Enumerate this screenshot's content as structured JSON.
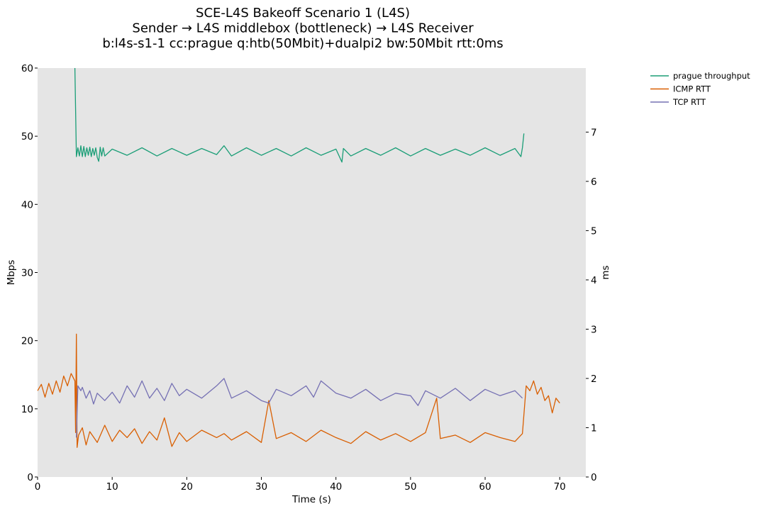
{
  "chart_data": {
    "type": "line",
    "title": [
      "SCE-L4S Bakeoff Scenario 1 (L4S)",
      "Sender → L4S middlebox (bottleneck) → L4S Receiver",
      "b:l4s-s1-1 cc:prague q:htb(50Mbit)+dualpi2 bw:50Mbit rtt:0ms"
    ],
    "xlabel": "Time (s)",
    "ylabel": "Mbps",
    "y2label": "ms",
    "xlim": [
      0,
      73.5
    ],
    "ylim": [
      0,
      60
    ],
    "y2lim": [
      0,
      8.3
    ],
    "xticks": [
      0,
      10,
      20,
      30,
      40,
      50,
      60,
      70
    ],
    "yticks": [
      0,
      10,
      20,
      30,
      40,
      50,
      60
    ],
    "y2ticks": [
      0,
      1,
      2,
      3,
      4,
      5,
      6,
      7
    ],
    "background": "#e5e5e5",
    "grid": false,
    "legend_position": "outside-top-right",
    "series": [
      {
        "name": "prague throughput",
        "axis": "left",
        "color": "#1b9e77",
        "x": [
          5.0,
          5.2,
          5.4,
          5.6,
          5.8,
          6.0,
          6.2,
          6.4,
          6.6,
          6.8,
          7.0,
          7.2,
          7.4,
          7.6,
          7.8,
          8.0,
          8.2,
          8.4,
          8.6,
          8.8,
          9.0,
          10.0,
          12.0,
          14.0,
          16.0,
          18.0,
          20.0,
          22.0,
          24.0,
          25.0,
          26.0,
          28.0,
          30.0,
          32.0,
          34.0,
          36.0,
          38.0,
          40.0,
          40.8,
          41.0,
          42.0,
          44.0,
          46.0,
          48.0,
          50.0,
          52.0,
          54.0,
          56.0,
          58.0,
          60.0,
          62.0,
          64.0,
          64.8,
          65.0,
          65.2
        ],
        "values": [
          60,
          47.0,
          48.3,
          47.1,
          48.6,
          47.0,
          48.5,
          47.0,
          48.3,
          47.2,
          48.4,
          47.0,
          48.2,
          47.2,
          48.3,
          46.9,
          46.3,
          48.4,
          47.1,
          48.3,
          47.1,
          48.1,
          47.2,
          48.3,
          47.1,
          48.2,
          47.2,
          48.2,
          47.3,
          48.6,
          47.1,
          48.3,
          47.2,
          48.2,
          47.1,
          48.3,
          47.2,
          48.1,
          46.2,
          48.2,
          47.1,
          48.2,
          47.2,
          48.3,
          47.1,
          48.2,
          47.2,
          48.1,
          47.2,
          48.3,
          47.2,
          48.2,
          47.0,
          48.3,
          50.4
        ]
      },
      {
        "name": "ICMP RTT",
        "axis": "right",
        "color": "#d95f02",
        "x": [
          0,
          0.5,
          1.0,
          1.5,
          2.0,
          2.5,
          3.0,
          3.5,
          4.0,
          4.5,
          5.0,
          5.1,
          5.2,
          5.3,
          5.5,
          6.0,
          6.5,
          7.0,
          8.0,
          9.0,
          10.0,
          11.0,
          12.0,
          13.0,
          14.0,
          15.0,
          16.0,
          17.0,
          18.0,
          19.0,
          20.0,
          22.0,
          24.0,
          25.0,
          26.0,
          28.0,
          30.0,
          31.0,
          32.0,
          34.0,
          36.0,
          38.0,
          40.0,
          42.0,
          44.0,
          46.0,
          48.0,
          50.0,
          52.0,
          53.5,
          54.0,
          56.0,
          58.0,
          60.0,
          62.0,
          64.0,
          65.0,
          65.5,
          66.0,
          66.5,
          67.0,
          67.5,
          68.0,
          68.5,
          69.0,
          69.5,
          70.0
        ],
        "values": [
          1.75,
          1.88,
          1.62,
          1.9,
          1.68,
          1.95,
          1.72,
          2.05,
          1.85,
          2.1,
          1.95,
          0.9,
          2.9,
          0.6,
          0.85,
          1.0,
          0.65,
          0.92,
          0.7,
          1.05,
          0.72,
          0.95,
          0.8,
          0.98,
          0.68,
          0.92,
          0.75,
          1.2,
          0.62,
          0.9,
          0.72,
          0.95,
          0.8,
          0.88,
          0.75,
          0.92,
          0.7,
          1.55,
          0.78,
          0.9,
          0.72,
          0.95,
          0.8,
          0.68,
          0.92,
          0.75,
          0.88,
          0.72,
          0.9,
          1.6,
          0.78,
          0.85,
          0.7,
          0.9,
          0.8,
          0.72,
          0.88,
          1.85,
          1.75,
          1.95,
          1.68,
          1.82,
          1.55,
          1.65,
          1.3,
          1.6,
          1.5
        ]
      },
      {
        "name": "TCP RTT",
        "axis": "right",
        "color": "#7570b3",
        "x": [
          5.2,
          5.4,
          5.8,
          6.0,
          6.5,
          7.0,
          7.5,
          8.0,
          9.0,
          10.0,
          11.0,
          12.0,
          13.0,
          14.0,
          15.0,
          16.0,
          17.0,
          18.0,
          19.0,
          20.0,
          22.0,
          24.0,
          25.0,
          26.0,
          28.0,
          30.0,
          31.0,
          32.0,
          34.0,
          36.0,
          37.0,
          38.0,
          40.0,
          42.0,
          44.0,
          46.0,
          48.0,
          50.0,
          51.0,
          52.0,
          54.0,
          56.0,
          58.0,
          60.0,
          62.0,
          64.0,
          65.0
        ],
        "values": [
          0.8,
          1.85,
          1.75,
          1.82,
          1.6,
          1.75,
          1.48,
          1.7,
          1.55,
          1.72,
          1.5,
          1.85,
          1.62,
          1.95,
          1.6,
          1.8,
          1.55,
          1.9,
          1.65,
          1.78,
          1.6,
          1.85,
          2.0,
          1.6,
          1.75,
          1.55,
          1.5,
          1.78,
          1.65,
          1.85,
          1.62,
          1.95,
          1.7,
          1.6,
          1.78,
          1.55,
          1.7,
          1.65,
          1.45,
          1.75,
          1.6,
          1.8,
          1.55,
          1.78,
          1.65,
          1.75,
          1.6
        ]
      }
    ]
  }
}
